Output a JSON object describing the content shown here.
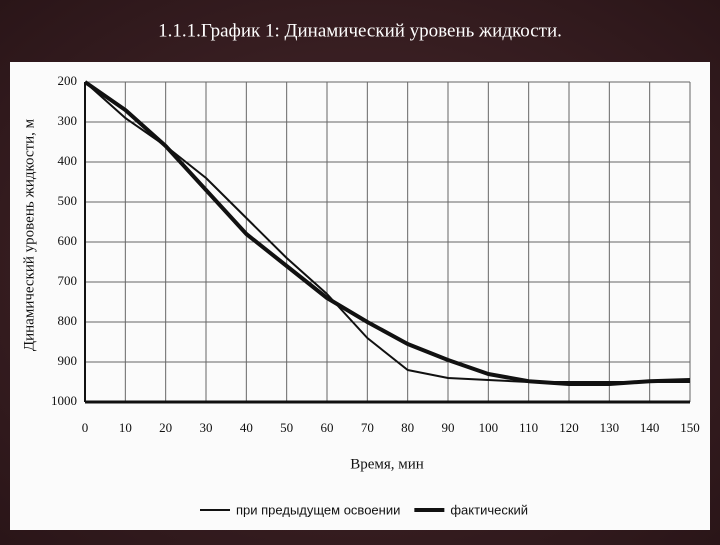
{
  "chart_data": {
    "type": "line",
    "title": "1.1.1.График 1: Динамический уровень жидкости.",
    "xlabel": "Время, мин",
    "ylabel": "Динамический уровень жидкости, м",
    "x": [
      0,
      10,
      20,
      30,
      40,
      50,
      60,
      70,
      80,
      90,
      100,
      110,
      120,
      130,
      140,
      150
    ],
    "series": [
      {
        "name": "при предыдущем освоении",
        "color": "#111111",
        "width": 2,
        "values": [
          200,
          290,
          360,
          440,
          540,
          640,
          730,
          840,
          920,
          940,
          945,
          950,
          950,
          950,
          950,
          950
        ]
      },
      {
        "name": "фактический",
        "color": "#111111",
        "width": 4,
        "values": [
          200,
          270,
          360,
          470,
          580,
          660,
          740,
          800,
          855,
          895,
          930,
          948,
          955,
          955,
          948,
          945
        ]
      }
    ],
    "xlim": [
      0,
      150
    ],
    "xticks": [
      0,
      10,
      20,
      30,
      40,
      50,
      60,
      70,
      80,
      90,
      100,
      110,
      120,
      130,
      140,
      150
    ],
    "ylim": [
      200,
      1000
    ],
    "yticks": [
      200,
      300,
      400,
      500,
      600,
      700,
      800,
      900,
      1000
    ],
    "y_inverted": true,
    "grid": true
  }
}
